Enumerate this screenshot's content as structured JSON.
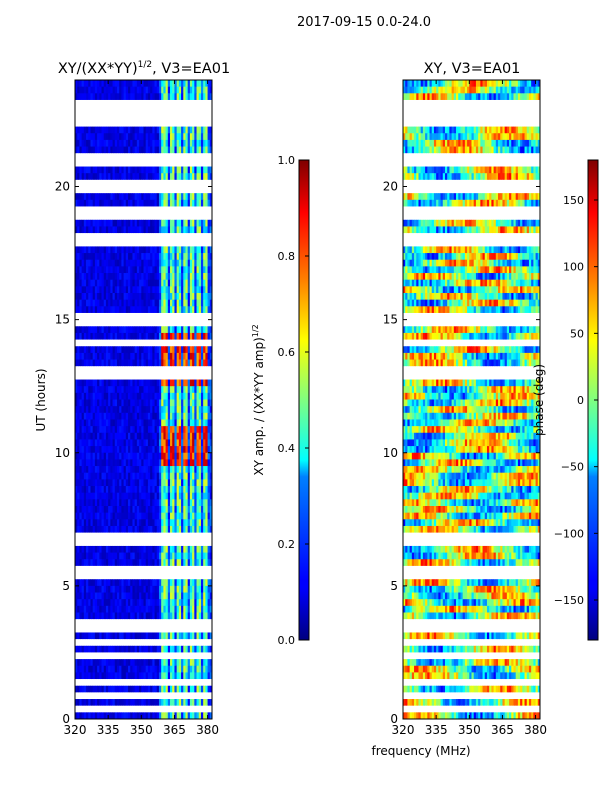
{
  "figure": {
    "suptitle": "2017-09-15 0.0-24.0",
    "xlabel_shared": "frequency (MHz)"
  },
  "chart_data": [
    {
      "type": "heatmap",
      "title_main": "XY/(XX*YY)",
      "title_exp": "1/2",
      "title_tail": ", V3=EA01",
      "ylabel": "UT (hours)",
      "xlim": [
        320,
        382
      ],
      "ylim": [
        0,
        24
      ],
      "xticks": [
        320,
        335,
        350,
        365,
        380
      ],
      "yticks": [
        0,
        5,
        10,
        15,
        20
      ],
      "colormap": "jet",
      "colorbar": {
        "label_main": "XY amp. / (XX*YY amp)",
        "label_exp": "1/2",
        "range": [
          0.0,
          1.0
        ],
        "ticks": [
          0.0,
          0.2,
          0.4,
          0.6,
          0.8,
          1.0
        ],
        "tick_labels": [
          "0.0",
          "0.2",
          "0.4",
          "0.6",
          "0.8",
          "1.0"
        ]
      },
      "rfi_bands_mhz": [
        [
          359.5,
          361.5
        ],
        [
          363,
          364.5
        ],
        [
          366,
          367.5
        ],
        [
          369,
          370.5
        ],
        [
          372,
          374
        ],
        [
          375.5,
          377
        ],
        [
          378.5,
          380
        ]
      ],
      "high_amplitude_hours": [
        [
          9.5,
          11.0
        ],
        [
          12.5,
          14.5
        ]
      ],
      "gap_hours": [
        0.4,
        0.8,
        1.3,
        2.3,
        2.8,
        3.5,
        3.6,
        5.5,
        5.6,
        6.7,
        6.9,
        13.0,
        14.2,
        15.0,
        17.8,
        18.0,
        18.8,
        19.2,
        19.9,
        20.1,
        21.0,
        22.5,
        23.0
      ]
    },
    {
      "type": "heatmap",
      "title_main": "XY, V3=EA01",
      "ylabel": "",
      "xlim": [
        320,
        382
      ],
      "ylim": [
        0,
        24
      ],
      "xticks": [
        320,
        335,
        350,
        365,
        380
      ],
      "yticks": [
        0,
        5,
        10,
        15,
        20
      ],
      "colormap": "jet",
      "colorbar": {
        "label_main": "phase (deg)",
        "range": [
          -180,
          180
        ],
        "ticks": [
          -150,
          -100,
          -50,
          0,
          50,
          100,
          150
        ],
        "tick_labels": [
          "−150",
          "−100",
          "−50",
          "0",
          "50",
          "100",
          "150"
        ]
      },
      "gap_hours": [
        0.4,
        0.8,
        1.3,
        2.3,
        2.8,
        3.5,
        3.6,
        5.5,
        5.6,
        6.7,
        6.9,
        13.0,
        14.2,
        15.0,
        17.8,
        18.0,
        18.8,
        19.2,
        19.9,
        20.1,
        21.0,
        22.5,
        23.0
      ]
    }
  ]
}
